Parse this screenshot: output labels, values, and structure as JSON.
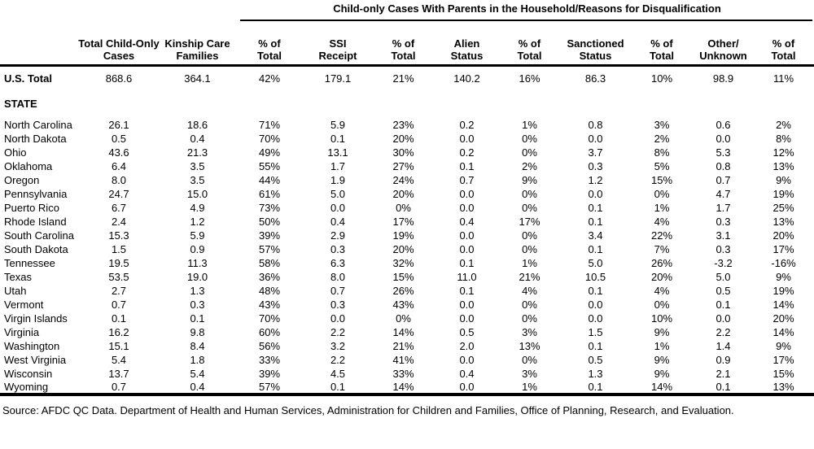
{
  "group_header": {
    "title": "Child-only Cases With Parents in the Household/Reasons for Disqualification"
  },
  "table": {
    "columns": [
      "",
      "Total Child-Only\nCases",
      "Kinship Care\nFamilies",
      "% of\nTotal",
      "SSI\nReceipt",
      "% of\nTotal",
      "Alien\nStatus",
      "% of\nTotal",
      "Sanctioned\nStatus",
      "% of\nTotal",
      "Other/\nUnknown",
      "% of\nTotal"
    ],
    "us_total": {
      "label": "U.S. Total",
      "values": [
        "868.6",
        "364.1",
        "42%",
        "179.1",
        "21%",
        "140.2",
        "16%",
        "86.3",
        "10%",
        "98.9",
        "11%"
      ]
    },
    "section_label": "STATE",
    "rows": [
      {
        "state": "North Carolina",
        "values": [
          "26.1",
          "18.6",
          "71%",
          "5.9",
          "23%",
          "0.2",
          "1%",
          "0.8",
          "3%",
          "0.6",
          "2%"
        ]
      },
      {
        "state": "North Dakota",
        "values": [
          "0.5",
          "0.4",
          "70%",
          "0.1",
          "20%",
          "0.0",
          "0%",
          "0.0",
          "2%",
          "0.0",
          "8%"
        ]
      },
      {
        "state": "Ohio",
        "values": [
          "43.6",
          "21.3",
          "49%",
          "13.1",
          "30%",
          "0.2",
          "0%",
          "3.7",
          "8%",
          "5.3",
          "12%"
        ]
      },
      {
        "state": "Oklahoma",
        "values": [
          "6.4",
          "3.5",
          "55%",
          "1.7",
          "27%",
          "0.1",
          "2%",
          "0.3",
          "5%",
          "0.8",
          "13%"
        ]
      },
      {
        "state": "Oregon",
        "values": [
          "8.0",
          "3.5",
          "44%",
          "1.9",
          "24%",
          "0.7",
          "9%",
          "1.2",
          "15%",
          "0.7",
          "9%"
        ]
      },
      {
        "state": "Pennsylvania",
        "values": [
          "24.7",
          "15.0",
          "61%",
          "5.0",
          "20%",
          "0.0",
          "0%",
          "0.0",
          "0%",
          "4.7",
          "19%"
        ]
      },
      {
        "state": "Puerto Rico",
        "values": [
          "6.7",
          "4.9",
          "73%",
          "0.0",
          "0%",
          "0.0",
          "0%",
          "0.1",
          "1%",
          "1.7",
          "25%"
        ]
      },
      {
        "state": "Rhode Island",
        "values": [
          "2.4",
          "1.2",
          "50%",
          "0.4",
          "17%",
          "0.4",
          "17%",
          "0.1",
          "4%",
          "0.3",
          "13%"
        ]
      },
      {
        "state": "South Carolina",
        "values": [
          "15.3",
          "5.9",
          "39%",
          "2.9",
          "19%",
          "0.0",
          "0%",
          "3.4",
          "22%",
          "3.1",
          "20%"
        ]
      },
      {
        "state": "South Dakota",
        "values": [
          "1.5",
          "0.9",
          "57%",
          "0.3",
          "20%",
          "0.0",
          "0%",
          "0.1",
          "7%",
          "0.3",
          "17%"
        ]
      },
      {
        "state": "Tennessee",
        "values": [
          "19.5",
          "11.3",
          "58%",
          "6.3",
          "32%",
          "0.1",
          "1%",
          "5.0",
          "26%",
          "-3.2",
          "-16%"
        ]
      },
      {
        "state": "Texas",
        "values": [
          "53.5",
          "19.0",
          "36%",
          "8.0",
          "15%",
          "11.0",
          "21%",
          "10.5",
          "20%",
          "5.0",
          "9%"
        ]
      },
      {
        "state": "Utah",
        "values": [
          "2.7",
          "1.3",
          "48%",
          "0.7",
          "26%",
          "0.1",
          "4%",
          "0.1",
          "4%",
          "0.5",
          "19%"
        ]
      },
      {
        "state": "Vermont",
        "values": [
          "0.7",
          "0.3",
          "43%",
          "0.3",
          "43%",
          "0.0",
          "0%",
          "0.0",
          "0%",
          "0.1",
          "14%"
        ]
      },
      {
        "state": "Virgin Islands",
        "values": [
          "0.1",
          "0.1",
          "70%",
          "0.0",
          "0%",
          "0.0",
          "0%",
          "0.0",
          "10%",
          "0.0",
          "20%"
        ]
      },
      {
        "state": "Virginia",
        "values": [
          "16.2",
          "9.8",
          "60%",
          "2.2",
          "14%",
          "0.5",
          "3%",
          "1.5",
          "9%",
          "2.2",
          "14%"
        ]
      },
      {
        "state": "Washington",
        "values": [
          "15.1",
          "8.4",
          "56%",
          "3.2",
          "21%",
          "2.0",
          "13%",
          "0.1",
          "1%",
          "1.4",
          "9%"
        ]
      },
      {
        "state": "West Virginia",
        "values": [
          "5.4",
          "1.8",
          "33%",
          "2.2",
          "41%",
          "0.0",
          "0%",
          "0.5",
          "9%",
          "0.9",
          "17%"
        ]
      },
      {
        "state": "Wisconsin",
        "values": [
          "13.7",
          "5.4",
          "39%",
          "4.5",
          "33%",
          "0.4",
          "3%",
          "1.3",
          "9%",
          "2.1",
          "15%"
        ]
      },
      {
        "state": "Wyoming",
        "values": [
          "0.7",
          "0.4",
          "57%",
          "0.1",
          "14%",
          "0.0",
          "1%",
          "0.1",
          "14%",
          "0.1",
          "13%"
        ]
      }
    ]
  },
  "footer": {
    "source": "Source: AFDC QC Data. Department of Health and Human Services, Administration for Children and Families, Office of Planning, Research, and Evaluation."
  }
}
